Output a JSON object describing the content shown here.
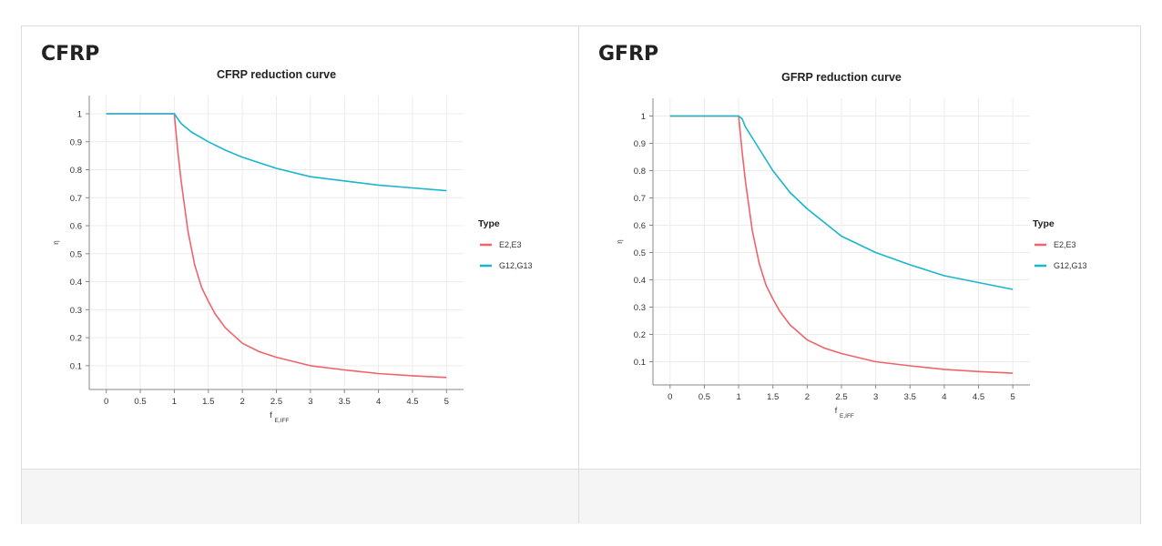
{
  "charts": [
    {
      "caption": "CFRP",
      "chart_data": {
        "type": "line",
        "title": "CFRP reduction curve",
        "xlabel": "f",
        "xlabel_sub": "E,IFF",
        "ylabel": "η",
        "xlim": [
          -0.25,
          5.25
        ],
        "ylim": [
          0.015,
          1.065
        ],
        "xticks": [
          0,
          0.5,
          1,
          1.5,
          2,
          2.5,
          3,
          3.5,
          4,
          4.5,
          5
        ],
        "xtick_labels": [
          "0",
          "0.5",
          "1",
          "1.5",
          "2",
          "2.5",
          "3",
          "3.5",
          "4",
          "4.5",
          "5"
        ],
        "yticks": [
          0.1,
          0.2,
          0.3,
          0.4,
          0.5,
          0.6,
          0.7,
          0.8,
          0.9,
          1
        ],
        "ytick_labels": [
          "0.1",
          "0.2",
          "0.3",
          "0.4",
          "0.5",
          "0.6",
          "0.7",
          "0.8",
          "0.9",
          "1"
        ],
        "grid": true,
        "legend_title": "Type",
        "legend_position": "right",
        "series": [
          {
            "name": "E2,E3",
            "color": "#f0636a",
            "x": [
              0,
              1,
              1.05,
              1.1,
              1.2,
              1.3,
              1.4,
              1.5,
              1.6,
              1.75,
              2,
              2.25,
              2.5,
              3,
              3.5,
              4,
              4.5,
              5
            ],
            "y": [
              1,
              1,
              0.87,
              0.76,
              0.58,
              0.46,
              0.38,
              0.33,
              0.285,
              0.235,
              0.18,
              0.15,
              0.13,
              0.1,
              0.085,
              0.072,
              0.064,
              0.058
            ]
          },
          {
            "name": "G12,G13",
            "color": "#1ab5cf",
            "x": [
              0,
              1,
              1.1,
              1.25,
              1.5,
              1.75,
              2,
              2.5,
              3,
              3.5,
              4,
              4.5,
              5
            ],
            "y": [
              1,
              1,
              0.965,
              0.935,
              0.9,
              0.87,
              0.845,
              0.805,
              0.775,
              0.76,
              0.745,
              0.735,
              0.725
            ]
          }
        ]
      }
    },
    {
      "caption": "GFRP",
      "chart_data": {
        "type": "line",
        "title": "GFRP reduction curve",
        "xlabel": "f",
        "xlabel_sub": "E,IFF",
        "ylabel": "η",
        "xlim": [
          -0.25,
          5.25
        ],
        "ylim": [
          0.015,
          1.065
        ],
        "xticks": [
          0,
          0.5,
          1,
          1.5,
          2,
          2.5,
          3,
          3.5,
          4,
          4.5,
          5
        ],
        "xtick_labels": [
          "0",
          "0.5",
          "1",
          "1.5",
          "2",
          "2.5",
          "3",
          "3.5",
          "4",
          "4.5",
          "5"
        ],
        "yticks": [
          0.1,
          0.2,
          0.3,
          0.4,
          0.5,
          0.6,
          0.7,
          0.8,
          0.9,
          1
        ],
        "ytick_labels": [
          "0.1",
          "0.2",
          "0.3",
          "0.4",
          "0.5",
          "0.6",
          "0.7",
          "0.8",
          "0.9",
          "1"
        ],
        "grid": true,
        "legend_title": "Type",
        "legend_position": "right",
        "series": [
          {
            "name": "E2,E3",
            "color": "#f0636a",
            "x": [
              0,
              1,
              1.05,
              1.1,
              1.2,
              1.3,
              1.4,
              1.5,
              1.6,
              1.75,
              2,
              2.25,
              2.5,
              3,
              3.5,
              4,
              4.5,
              5
            ],
            "y": [
              1,
              1,
              0.87,
              0.76,
              0.58,
              0.46,
              0.38,
              0.33,
              0.285,
              0.235,
              0.18,
              0.15,
              0.13,
              0.1,
              0.085,
              0.072,
              0.064,
              0.058
            ]
          },
          {
            "name": "G12,G13",
            "color": "#1ab5cf",
            "x": [
              0,
              1,
              1.05,
              1.1,
              1.25,
              1.5,
              1.75,
              2,
              2.5,
              3,
              3.5,
              4,
              4.5,
              5
            ],
            "y": [
              1,
              1,
              0.99,
              0.96,
              0.9,
              0.8,
              0.72,
              0.66,
              0.56,
              0.5,
              0.455,
              0.415,
              0.39,
              0.365
            ]
          }
        ]
      }
    }
  ]
}
